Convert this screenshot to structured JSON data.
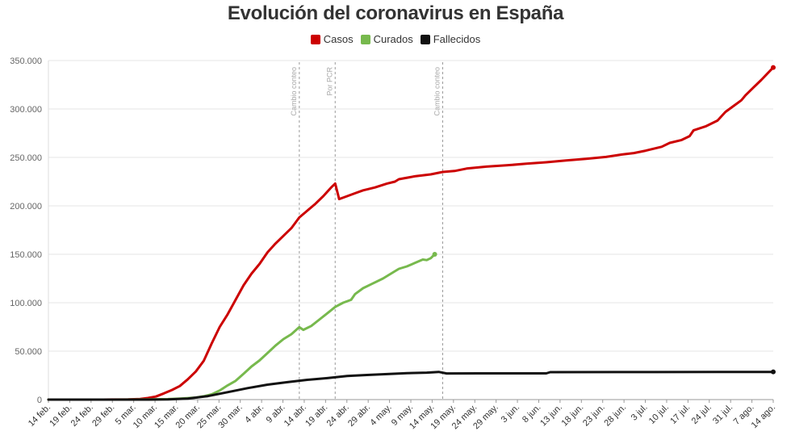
{
  "chart_data": {
    "type": "line",
    "title": "Evolución del coronavirus en España",
    "xlabel": "",
    "ylabel": "",
    "ylim": [
      0,
      350000
    ],
    "yticks": [
      0,
      50000,
      100000,
      150000,
      200000,
      250000,
      300000,
      350000
    ],
    "ytick_labels": [
      "0",
      "50.000",
      "100.000",
      "150.000",
      "200.000",
      "250.000",
      "300.000",
      "350.000"
    ],
    "grid": "horizontal",
    "legend": "top-center",
    "x_start": "2020-02-14",
    "x_end": "2020-08-14",
    "x_tick_labels": [
      "14 feb.",
      "19 feb.",
      "24 feb.",
      "29 feb.",
      "5 mar.",
      "10 mar.",
      "15 mar.",
      "20 mar.",
      "25 mar.",
      "30 mar.",
      "4 abr.",
      "9 abr.",
      "14 abr.",
      "19 abr.",
      "24 abr.",
      "29 abr.",
      "4 may.",
      "9 may.",
      "14 may.",
      "19 may.",
      "24 may.",
      "29 may.",
      "3 jun.",
      "8 jun.",
      "13 jun.",
      "18 jun.",
      "23 jun.",
      "28 jun.",
      "3 jul.",
      "10 jul.",
      "17 jul.",
      "24 jul.",
      "31 jul.",
      "7 ago.",
      "14 ago."
    ],
    "annotations": [
      {
        "date": "2020-04-17",
        "text": "Cambio conteo"
      },
      {
        "date": "2020-04-26",
        "text": "Por PCR"
      },
      {
        "date": "2020-05-23",
        "text": "Cambio conteo"
      }
    ],
    "series": [
      {
        "name": "Casos",
        "color": "#cc0000",
        "points": [
          [
            "2020-02-14",
            2
          ],
          [
            "2020-02-25",
            6
          ],
          [
            "2020-03-01",
            84
          ],
          [
            "2020-03-05",
            282
          ],
          [
            "2020-03-08",
            673
          ],
          [
            "2020-03-10",
            1695
          ],
          [
            "2020-03-12",
            3146
          ],
          [
            "2020-03-14",
            6391
          ],
          [
            "2020-03-16",
            9942
          ],
          [
            "2020-03-18",
            14000
          ],
          [
            "2020-03-20",
            21000
          ],
          [
            "2020-03-22",
            29000
          ],
          [
            "2020-03-24",
            40000
          ],
          [
            "2020-03-26",
            58000
          ],
          [
            "2020-03-28",
            75000
          ],
          [
            "2020-03-30",
            88000
          ],
          [
            "2020-04-01",
            103000
          ],
          [
            "2020-04-03",
            118000
          ],
          [
            "2020-04-05",
            130000
          ],
          [
            "2020-04-07",
            140000
          ],
          [
            "2020-04-09",
            152000
          ],
          [
            "2020-04-11",
            161000
          ],
          [
            "2020-04-13",
            169000
          ],
          [
            "2020-04-15",
            177000
          ],
          [
            "2020-04-17",
            188000
          ],
          [
            "2020-04-19",
            195000
          ],
          [
            "2020-04-21",
            202000
          ],
          [
            "2020-04-23",
            210000
          ],
          [
            "2020-04-25",
            219000
          ],
          [
            "2020-04-26",
            223000
          ],
          [
            "2020-04-27",
            207000
          ],
          [
            "2020-04-29",
            210000
          ],
          [
            "2020-05-01",
            213000
          ],
          [
            "2020-05-03",
            216000
          ],
          [
            "2020-05-06",
            219000
          ],
          [
            "2020-05-09",
            223000
          ],
          [
            "2020-05-11",
            225000
          ],
          [
            "2020-05-12",
            227500
          ],
          [
            "2020-05-16",
            230500
          ],
          [
            "2020-05-20",
            232500
          ],
          [
            "2020-05-23",
            235000
          ],
          [
            "2020-05-26",
            236000
          ],
          [
            "2020-05-29",
            238500
          ],
          [
            "2020-06-03",
            240500
          ],
          [
            "2020-06-08",
            241800
          ],
          [
            "2020-06-13",
            243500
          ],
          [
            "2020-06-18",
            245000
          ],
          [
            "2020-06-23",
            246800
          ],
          [
            "2020-06-28",
            248600
          ],
          [
            "2020-07-03",
            250500
          ],
          [
            "2020-07-07",
            253000
          ],
          [
            "2020-07-10",
            254500
          ],
          [
            "2020-07-13",
            257000
          ],
          [
            "2020-07-17",
            261000
          ],
          [
            "2020-07-19",
            265000
          ],
          [
            "2020-07-22",
            268000
          ],
          [
            "2020-07-24",
            272000
          ],
          [
            "2020-07-25",
            278000
          ],
          [
            "2020-07-28",
            282000
          ],
          [
            "2020-07-31",
            288000
          ],
          [
            "2020-08-02",
            297000
          ],
          [
            "2020-08-04",
            303000
          ],
          [
            "2020-08-06",
            309000
          ],
          [
            "2020-08-07",
            314000
          ],
          [
            "2020-08-09",
            322000
          ],
          [
            "2020-08-11",
            330000
          ],
          [
            "2020-08-14",
            342800
          ]
        ]
      },
      {
        "name": "Curados",
        "color": "#77b94d",
        "points": [
          [
            "2020-02-14",
            0
          ],
          [
            "2020-03-01",
            0
          ],
          [
            "2020-03-10",
            180
          ],
          [
            "2020-03-15",
            500
          ],
          [
            "2020-03-18",
            1100
          ],
          [
            "2020-03-20",
            1600
          ],
          [
            "2020-03-22",
            2100
          ],
          [
            "2020-03-24",
            3400
          ],
          [
            "2020-03-26",
            5400
          ],
          [
            "2020-03-28",
            9400
          ],
          [
            "2020-03-30",
            14700
          ],
          [
            "2020-04-01",
            19300
          ],
          [
            "2020-04-03",
            26700
          ],
          [
            "2020-04-05",
            34200
          ],
          [
            "2020-04-07",
            40400
          ],
          [
            "2020-04-09",
            48000
          ],
          [
            "2020-04-11",
            55700
          ],
          [
            "2020-04-13",
            62400
          ],
          [
            "2020-04-15",
            67500
          ],
          [
            "2020-04-17",
            74800
          ],
          [
            "2020-04-18",
            72000
          ],
          [
            "2020-04-20",
            76000
          ],
          [
            "2020-04-22",
            82500
          ],
          [
            "2020-04-24",
            89000
          ],
          [
            "2020-04-26",
            95700
          ],
          [
            "2020-04-28",
            100000
          ],
          [
            "2020-04-30",
            103000
          ],
          [
            "2020-05-01",
            108900
          ],
          [
            "2020-05-03",
            115000
          ],
          [
            "2020-05-05",
            119000
          ],
          [
            "2020-05-08",
            125000
          ],
          [
            "2020-05-10",
            130000
          ],
          [
            "2020-05-12",
            135000
          ],
          [
            "2020-05-14",
            137500
          ],
          [
            "2020-05-16",
            141000
          ],
          [
            "2020-05-18",
            144600
          ],
          [
            "2020-05-19",
            144000
          ],
          [
            "2020-05-20",
            146000
          ],
          [
            "2020-05-21",
            150000
          ]
        ]
      },
      {
        "name": "Fallecidos",
        "color": "#111111",
        "points": [
          [
            "2020-02-14",
            0
          ],
          [
            "2020-03-10",
            35
          ],
          [
            "2020-03-15",
            200
          ],
          [
            "2020-03-20",
            1100
          ],
          [
            "2020-03-25",
            3600
          ],
          [
            "2020-03-30",
            7700
          ],
          [
            "2020-04-04",
            11800
          ],
          [
            "2020-04-09",
            15400
          ],
          [
            "2020-04-14",
            18000
          ],
          [
            "2020-04-19",
            20400
          ],
          [
            "2020-04-24",
            22200
          ],
          [
            "2020-04-29",
            24300
          ],
          [
            "2020-05-04",
            25400
          ],
          [
            "2020-05-09",
            26300
          ],
          [
            "2020-05-14",
            27300
          ],
          [
            "2020-05-19",
            27800
          ],
          [
            "2020-05-22",
            28600
          ],
          [
            "2020-05-24",
            27000
          ],
          [
            "2020-06-01",
            27100
          ],
          [
            "2020-06-18",
            27100
          ],
          [
            "2020-06-19",
            28300
          ],
          [
            "2020-07-15",
            28400
          ],
          [
            "2020-08-14",
            28600
          ]
        ]
      }
    ]
  }
}
